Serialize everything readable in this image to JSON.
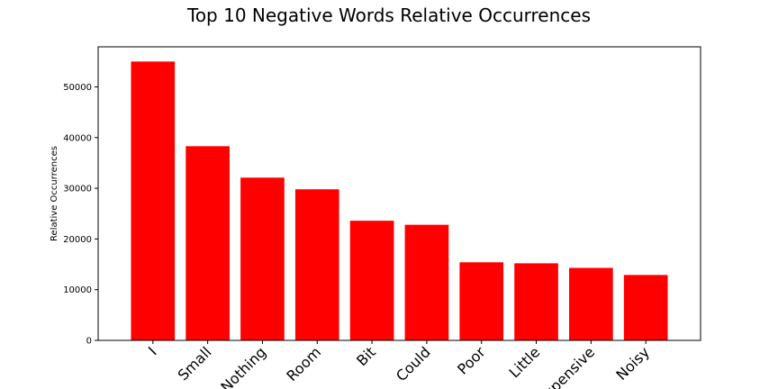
{
  "chart_data": {
    "type": "bar",
    "title": "Top 10 Negative Words Relative Occurrences",
    "xlabel": "",
    "ylabel": "Relative Occurrences",
    "categories": [
      "I",
      "Small",
      "Nothing",
      "Room",
      "Bit",
      "Could",
      "Poor",
      "Little",
      "Expensive",
      "Noisy"
    ],
    "values": [
      55000,
      38300,
      32100,
      29800,
      23600,
      22800,
      15400,
      15200,
      14300,
      12900
    ],
    "ylim": [
      0,
      57900
    ],
    "yticks": [
      0,
      10000,
      20000,
      30000,
      40000,
      50000
    ],
    "bar_color": "#ff0000",
    "grid": false,
    "legend": false
  }
}
